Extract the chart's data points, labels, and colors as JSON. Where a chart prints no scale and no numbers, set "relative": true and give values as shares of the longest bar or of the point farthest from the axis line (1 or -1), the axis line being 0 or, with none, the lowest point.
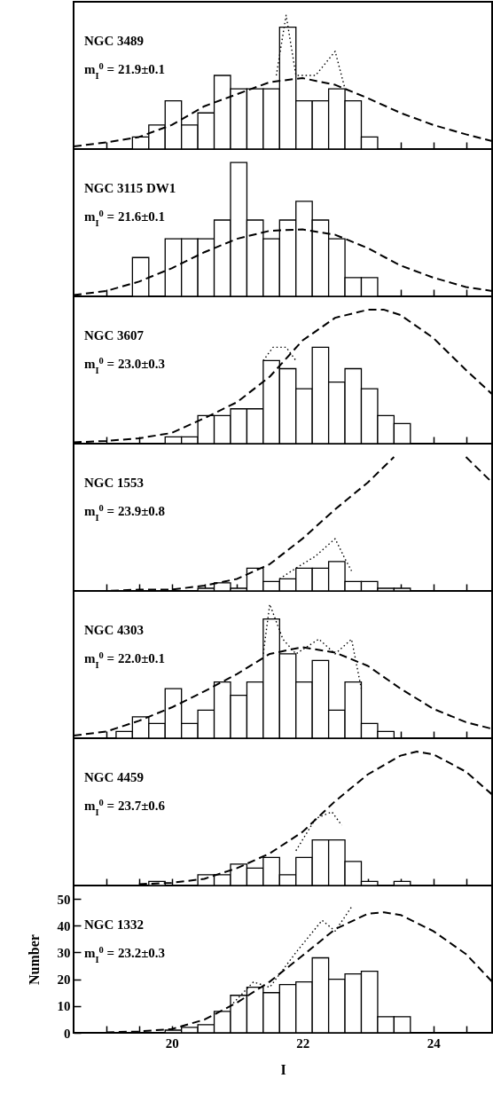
{
  "chart_data": [
    {
      "type": "histogram",
      "relative": true,
      "xlim": [
        18.5,
        24.9
      ],
      "xticks": [
        {
          "value": 19,
          "label": null
        },
        {
          "value": 19.5,
          "label": null
        },
        20,
        {
          "value": 20.5,
          "label": null
        },
        {
          "value": 21,
          "label": null
        },
        {
          "value": 21.5,
          "label": null
        },
        22,
        {
          "value": 22.5,
          "label": null
        },
        {
          "value": 23,
          "label": null
        },
        {
          "value": 23.5,
          "label": null
        },
        24,
        {
          "value": 24.5,
          "label": null
        }
      ],
      "tick_labels": false,
      "annotations": [
        "NGC 3489",
        "m$_{I}$$^{0}$ = 21.9±0.1"
      ],
      "bins": [
        18.65,
        18.9,
        19.15,
        19.4,
        19.65,
        19.9,
        20.15,
        20.4,
        20.65,
        20.9,
        21.15,
        21.4,
        21.65,
        21.9,
        22.15,
        22.4,
        22.65,
        22.9,
        23.15,
        23.4,
        23.65
      ],
      "series": [
        {
          "type": "histogram",
          "color": "#000000",
          "values": [
            0,
            0,
            0,
            0.09,
            0.18,
            0.36,
            0.18,
            0.27,
            0.55,
            0.45,
            0.45,
            0.45,
            0.91,
            0.36,
            0.36,
            0.45,
            0.36,
            0.09,
            0,
            0
          ]
        },
        {
          "type": "line",
          "line_style": "dashed",
          "color": "#000000",
          "x": [
            18.5,
            19,
            19.5,
            20,
            20.5,
            21,
            21.5,
            22,
            22.5,
            23,
            23.5,
            24,
            24.5,
            24.9
          ],
          "values": [
            0.02,
            0.05,
            0.09,
            0.18,
            0.32,
            0.41,
            0.5,
            0.53,
            0.48,
            0.38,
            0.27,
            0.18,
            0.11,
            0.06
          ]
        },
        {
          "type": "line",
          "line_style": "dotted",
          "color": "#000000",
          "x": [
            21.6,
            21.75,
            21.9,
            22.2,
            22.5,
            22.65
          ],
          "values": [
            0.55,
            1,
            0.55,
            0.55,
            0.73,
            0.45
          ]
        }
      ]
    },
    {
      "type": "histogram",
      "relative": true,
      "xlim": [
        18.5,
        24.9
      ],
      "xticks": [
        {
          "value": 19,
          "label": null
        },
        {
          "value": 19.5,
          "label": null
        },
        20,
        {
          "value": 20.5,
          "label": null
        },
        {
          "value": 21,
          "label": null
        },
        {
          "value": 21.5,
          "label": null
        },
        22,
        {
          "value": 22.5,
          "label": null
        },
        {
          "value": 23,
          "label": null
        },
        {
          "value": 23.5,
          "label": null
        },
        24,
        {
          "value": 24.5,
          "label": null
        }
      ],
      "tick_labels": false,
      "annotations": [
        "NGC 3115 DW1",
        "m$_{I}$$^{0}$ = 21.6±0.1"
      ],
      "bins": [
        18.65,
        18.9,
        19.15,
        19.4,
        19.65,
        19.9,
        20.15,
        20.4,
        20.65,
        20.9,
        21.15,
        21.4,
        21.65,
        21.9,
        22.15,
        22.4,
        22.65,
        22.9,
        23.15,
        23.4,
        23.65
      ],
      "series": [
        {
          "type": "histogram",
          "color": "#000000",
          "values": [
            0,
            0,
            0,
            0.29,
            0,
            0.43,
            0.43,
            0.43,
            0.57,
            1,
            0.57,
            0.43,
            0.57,
            0.71,
            0.57,
            0.43,
            0.14,
            0.14,
            0,
            0
          ]
        },
        {
          "type": "line",
          "line_style": "dashed",
          "color": "#000000",
          "x": [
            18.5,
            19,
            19.5,
            20,
            20.5,
            21,
            21.5,
            22,
            22.5,
            23,
            23.5,
            24,
            24.5,
            24.9
          ],
          "values": [
            0.01,
            0.04,
            0.11,
            0.21,
            0.33,
            0.43,
            0.49,
            0.5,
            0.46,
            0.36,
            0.23,
            0.14,
            0.07,
            0.04
          ]
        }
      ]
    },
    {
      "type": "histogram",
      "relative": true,
      "xlim": [
        18.5,
        24.9
      ],
      "xticks": [
        {
          "value": 19,
          "label": null
        },
        {
          "value": 19.5,
          "label": null
        },
        20,
        {
          "value": 20.5,
          "label": null
        },
        {
          "value": 21,
          "label": null
        },
        {
          "value": 21.5,
          "label": null
        },
        22,
        {
          "value": 22.5,
          "label": null
        },
        {
          "value": 23,
          "label": null
        },
        {
          "value": 23.5,
          "label": null
        },
        24,
        {
          "value": 24.5,
          "label": null
        }
      ],
      "tick_labels": false,
      "annotations": [
        "NGC 3607",
        "m$_{I}$$^{0}$ = 23.0±0.3"
      ],
      "bins": [
        18.65,
        18.9,
        19.15,
        19.4,
        19.65,
        19.9,
        20.15,
        20.4,
        20.65,
        20.9,
        21.15,
        21.4,
        21.65,
        21.9,
        22.15,
        22.4,
        22.65,
        22.9,
        23.15,
        23.4,
        23.65
      ],
      "series": [
        {
          "type": "histogram",
          "color": "#000000",
          "values": [
            0,
            0,
            0,
            0,
            0,
            0.05,
            0.05,
            0.21,
            0.21,
            0.26,
            0.26,
            0.62,
            0.56,
            0.41,
            0.72,
            0.46,
            0.56,
            0.41,
            0.21,
            0.15
          ]
        },
        {
          "type": "line",
          "line_style": "dashed",
          "color": "#000000",
          "x": [
            18.5,
            19,
            19.5,
            20,
            20.5,
            21,
            21.5,
            22,
            22.5,
            23,
            23.25,
            23.5,
            24,
            24.5,
            24.9
          ],
          "values": [
            0.01,
            0.02,
            0.04,
            0.08,
            0.19,
            0.31,
            0.5,
            0.77,
            0.94,
            1,
            1,
            0.96,
            0.79,
            0.55,
            0.37
          ]
        },
        {
          "type": "line",
          "line_style": "dotted",
          "color": "#000000",
          "x": [
            21.4,
            21.55,
            21.75,
            21.9
          ],
          "values": [
            0.62,
            0.72,
            0.72,
            0.62
          ]
        }
      ]
    },
    {
      "type": "histogram",
      "relative": true,
      "xlim": [
        18.5,
        24.9
      ],
      "xticks": [
        {
          "value": 19,
          "label": null
        },
        {
          "value": 19.5,
          "label": null
        },
        20,
        {
          "value": 20.5,
          "label": null
        },
        {
          "value": 21,
          "label": null
        },
        {
          "value": 21.5,
          "label": null
        },
        22,
        {
          "value": 22.5,
          "label": null
        },
        {
          "value": 23,
          "label": null
        },
        {
          "value": 23.5,
          "label": null
        },
        24,
        {
          "value": 24.5,
          "label": null
        }
      ],
      "tick_labels": false,
      "annotations": [
        "NGC 1553",
        "m$_{I}$$^{0}$ = 23.9±0.8"
      ],
      "bins": [
        18.65,
        18.9,
        19.15,
        19.4,
        19.65,
        19.9,
        20.15,
        20.4,
        20.65,
        20.9,
        21.15,
        21.4,
        21.65,
        21.9,
        22.15,
        22.4,
        22.65,
        22.9,
        23.15,
        23.4,
        23.65
      ],
      "series": [
        {
          "type": "histogram",
          "color": "#000000",
          "values": [
            0,
            0,
            0,
            0,
            0,
            0,
            0,
            0.02,
            0.06,
            0.02,
            0.17,
            0.07,
            0.09,
            0.17,
            0.17,
            0.22,
            0.07,
            0.07,
            0.02,
            0.02
          ]
        },
        {
          "type": "line",
          "line_style": "dashed",
          "color": "#000000",
          "x": [
            18.5,
            19,
            19.5,
            20,
            20.5,
            21,
            21.5,
            22,
            22.5,
            23,
            23.4,
            23.9,
            24.5,
            24.9
          ],
          "values": [
            0,
            0,
            0.01,
            0.01,
            0.04,
            0.09,
            0.2,
            0.39,
            0.61,
            0.81,
            1,
            null,
            1,
            0.81
          ]
        },
        {
          "type": "line",
          "line_style": "dotted",
          "color": "#000000",
          "x": [
            21.65,
            21.9,
            22.2,
            22.5,
            22.65,
            22.75
          ],
          "values": [
            0.09,
            0.17,
            0.26,
            0.39,
            0.24,
            0.15
          ]
        }
      ]
    },
    {
      "type": "histogram",
      "relative": true,
      "xlim": [
        18.5,
        24.9
      ],
      "xticks": [
        {
          "value": 19,
          "label": null
        },
        {
          "value": 19.5,
          "label": null
        },
        20,
        {
          "value": 20.5,
          "label": null
        },
        {
          "value": 21,
          "label": null
        },
        {
          "value": 21.5,
          "label": null
        },
        22,
        {
          "value": 22.5,
          "label": null
        },
        {
          "value": 23,
          "label": null
        },
        {
          "value": 23.5,
          "label": null
        },
        24,
        {
          "value": 24.5,
          "label": null
        }
      ],
      "tick_labels": false,
      "annotations": [
        "NGC 4303",
        "m$_{I}$$^{0}$ = 22.0±0.1"
      ],
      "bins": [
        18.65,
        18.9,
        19.15,
        19.4,
        19.65,
        19.9,
        20.15,
        20.4,
        20.65,
        20.9,
        21.15,
        21.4,
        21.65,
        21.9,
        22.15,
        22.4,
        22.65,
        22.9,
        23.15,
        23.4,
        23.65
      ],
      "series": [
        {
          "type": "histogram",
          "color": "#000000",
          "values": [
            0,
            0,
            0.05,
            0.16,
            0.11,
            0.37,
            0.11,
            0.21,
            0.42,
            0.32,
            0.42,
            0.89,
            0.63,
            0.42,
            0.58,
            0.21,
            0.42,
            0.11,
            0.05,
            0
          ]
        },
        {
          "type": "line",
          "line_style": "dashed",
          "color": "#000000",
          "x": [
            18.5,
            19,
            19.5,
            20,
            20.5,
            21,
            21.5,
            22,
            22.5,
            23,
            23.5,
            24,
            24.5,
            24.9
          ],
          "values": [
            0.02,
            0.05,
            0.13,
            0.23,
            0.35,
            0.48,
            0.63,
            0.68,
            0.64,
            0.54,
            0.37,
            0.22,
            0.12,
            0.07
          ]
        },
        {
          "type": "line",
          "line_style": "dotted",
          "color": "#000000",
          "x": [
            21.4,
            21.5,
            21.7,
            21.9,
            22.25,
            22.5,
            22.75,
            22.9
          ],
          "values": [
            0.63,
            1,
            0.74,
            0.63,
            0.74,
            0.63,
            0.74,
            0.37
          ]
        }
      ]
    },
    {
      "type": "histogram",
      "relative": true,
      "xlim": [
        18.5,
        24.9
      ],
      "xticks": [
        {
          "value": 19,
          "label": null
        },
        {
          "value": 19.5,
          "label": null
        },
        20,
        {
          "value": 20.5,
          "label": null
        },
        {
          "value": 21,
          "label": null
        },
        {
          "value": 21.5,
          "label": null
        },
        22,
        {
          "value": 22.5,
          "label": null
        },
        {
          "value": 23,
          "label": null
        },
        {
          "value": 23.5,
          "label": null
        },
        24,
        {
          "value": 24.5,
          "label": null
        }
      ],
      "tick_labels": false,
      "annotations": [
        "NGC 4459",
        "m$_{I}$$^{0}$ = 23.7±0.6"
      ],
      "bins": [
        18.65,
        18.9,
        19.15,
        19.4,
        19.65,
        19.9,
        20.15,
        20.4,
        20.65,
        20.9,
        21.15,
        21.4,
        21.65,
        21.9,
        22.15,
        22.4,
        22.65,
        22.9,
        23.15,
        23.4,
        23.65
      ],
      "series": [
        {
          "type": "histogram",
          "color": "#000000",
          "values": [
            0,
            0,
            0,
            0,
            0.03,
            0,
            0,
            0.08,
            0.08,
            0.16,
            0.13,
            0.21,
            0.08,
            0.21,
            0.34,
            0.34,
            0.18,
            0.03,
            0,
            0.03
          ]
        },
        {
          "type": "line",
          "line_style": "dashed",
          "color": "#000000",
          "x": [
            19.5,
            20,
            20.5,
            21,
            21.5,
            22,
            22.5,
            23,
            23.5,
            23.75,
            24,
            24.5,
            24.9
          ],
          "values": [
            0.01,
            0.02,
            0.05,
            0.13,
            0.24,
            0.4,
            0.63,
            0.83,
            0.97,
            1,
            0.98,
            0.85,
            0.68
          ]
        },
        {
          "type": "line",
          "line_style": "dotted",
          "color": "#000000",
          "x": [
            21.9,
            22.2,
            22.45,
            22.6
          ],
          "values": [
            0.26,
            0.5,
            0.55,
            0.45
          ]
        }
      ]
    },
    {
      "type": "histogram",
      "xlim": [
        18.5,
        24.9
      ],
      "xticks": [
        {
          "value": 19,
          "label": null
        },
        {
          "value": 19.5,
          "label": null
        },
        20,
        {
          "value": 20.5,
          "label": null
        },
        {
          "value": 21,
          "label": null
        },
        {
          "value": 21.5,
          "label": null
        },
        22,
        {
          "value": 22.5,
          "label": null
        },
        {
          "value": 23,
          "label": null
        },
        {
          "value": 23.5,
          "label": null
        },
        24,
        {
          "value": 24.5,
          "label": null
        }
      ],
      "ylim": [
        0,
        55
      ],
      "yticks": [
        0,
        10,
        20,
        30,
        40,
        50
      ],
      "xlabel": "I",
      "ylabel": "Number",
      "annotations": [
        "NGC 1332",
        "m$_{I}$$^{0}$ = 23.2±0.3"
      ],
      "bins": [
        18.65,
        18.9,
        19.15,
        19.4,
        19.65,
        19.9,
        20.15,
        20.4,
        20.65,
        20.9,
        21.15,
        21.4,
        21.65,
        21.9,
        22.15,
        22.4,
        22.65,
        22.9,
        23.15,
        23.4,
        23.65
      ],
      "series": [
        {
          "type": "histogram",
          "color": "#000000",
          "values": [
            0,
            0,
            0,
            0,
            0,
            1,
            2,
            3,
            8,
            14,
            17,
            15,
            18,
            19,
            28,
            20,
            22,
            23,
            6,
            6
          ]
        },
        {
          "type": "line",
          "line_style": "dashed",
          "color": "#000000",
          "x": [
            19,
            19.5,
            20,
            20.5,
            21,
            21.5,
            22,
            22.5,
            23,
            23.25,
            23.5,
            24,
            24.5,
            24.9
          ],
          "values": [
            0.2,
            0.5,
            1.4,
            4.9,
            11.3,
            19.1,
            28.8,
            38.7,
            44.5,
            45,
            44,
            38,
            29.4,
            19.1
          ]
        },
        {
          "type": "line",
          "line_style": "dotted",
          "color": "#000000",
          "x": [
            20.9,
            21.25,
            21.5,
            21.9,
            22.3,
            22.5,
            22.75
          ],
          "values": [
            10,
            19,
            17,
            30,
            42,
            38,
            47
          ]
        }
      ]
    }
  ]
}
